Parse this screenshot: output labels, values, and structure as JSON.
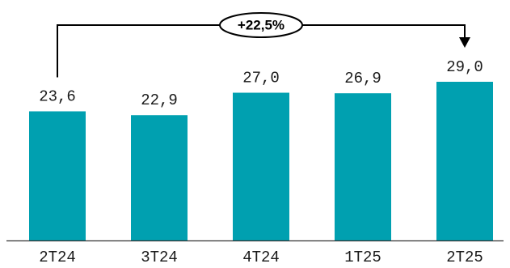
{
  "chart_data": {
    "type": "bar",
    "categories": [
      "2T24",
      "3T24",
      "4T24",
      "1T25",
      "2T25"
    ],
    "values": [
      23.6,
      22.9,
      27.0,
      26.9,
      29.0
    ],
    "value_labels": [
      "23,6",
      "22,9",
      "27,0",
      "26,9",
      "29,0"
    ],
    "bar_color": "#00A0B0",
    "ylim": [
      0,
      29.0
    ],
    "grid": false,
    "legend": "none",
    "title": "",
    "xlabel": "",
    "ylabel": "",
    "annotation": {
      "text": "+22,5%",
      "from_category": "2T24",
      "to_category": "2T25"
    }
  }
}
